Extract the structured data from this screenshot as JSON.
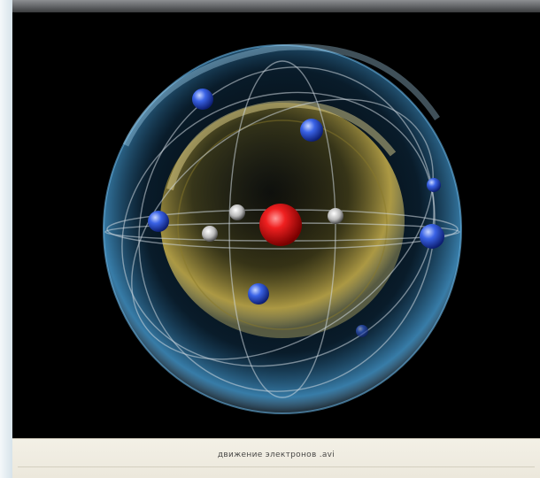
{
  "window": {
    "caption": "движение электронов .avi"
  },
  "scene": {
    "subject": "atom-model",
    "colors": {
      "background": "#000000",
      "outer_shell": "#2f8fd0",
      "inner_shell": "#c8b040",
      "nucleus": "#e01818",
      "electron": "#2a55d8",
      "neutron": "#e6e6e6"
    },
    "electron_count": 7,
    "neutron_count": 3
  }
}
